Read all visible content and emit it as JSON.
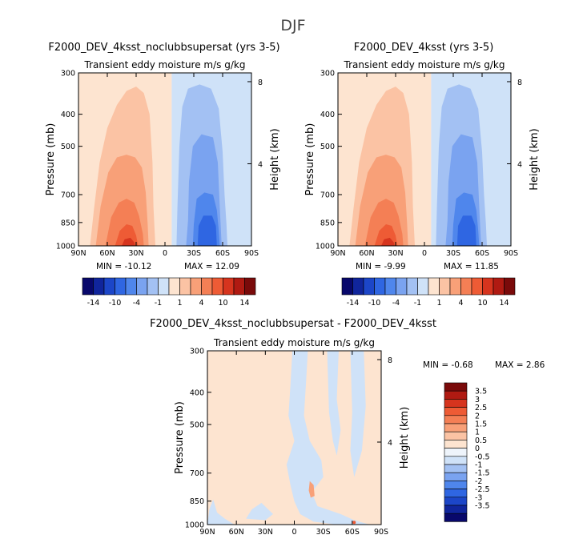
{
  "figure": {
    "title": "DJF"
  },
  "chart_data": [
    {
      "type": "heatmap",
      "id": "p1",
      "title": "F2000_DEV_4ksst_noclubbsupersat (yrs 3-5)",
      "subtitle": "Transient eddy moisture m/s g/kg",
      "xlabel": "",
      "ylabel": "Pressure (mb)",
      "y2label": "Height (km)",
      "xticks": [
        "90N",
        "60N",
        "30N",
        "0",
        "30S",
        "60S",
        "90S"
      ],
      "yticks": [
        300,
        400,
        500,
        700,
        850,
        1000
      ],
      "y2ticks": [
        8,
        4
      ],
      "min_label": "MIN = -10.12",
      "max_label": "MAX = 12.09",
      "stats": {
        "min": -10.12,
        "max": 12.09
      },
      "colorbar": {
        "orientation": "horizontal",
        "levels": [
          -14,
          -12,
          -10,
          -8,
          -4,
          -2,
          -1,
          -0.5,
          0.5,
          1,
          2,
          4,
          8,
          10,
          12,
          14
        ],
        "tick_labels": [
          "-14",
          "-10",
          "-4",
          "-1",
          "1",
          "4",
          "10",
          "14"
        ]
      },
      "features": [
        {
          "sign": "positive",
          "lat_center": 35,
          "peak": 12.09,
          "description": "northern hemisphere moisture flux maximum near 850-1000 mb"
        },
        {
          "sign": "negative",
          "lat_center": -45,
          "peak": -10.12,
          "description": "southern hemisphere moisture flux minimum near 850-1000 mb"
        }
      ]
    },
    {
      "type": "heatmap",
      "id": "p2",
      "title": "F2000_DEV_4ksst (yrs 3-5)",
      "subtitle": "Transient eddy moisture m/s g/kg",
      "xlabel": "",
      "ylabel": "Pressure (mb)",
      "y2label": "Height (km)",
      "xticks": [
        "90N",
        "60N",
        "30N",
        "0",
        "30S",
        "60S",
        "90S"
      ],
      "yticks": [
        300,
        400,
        500,
        700,
        850,
        1000
      ],
      "y2ticks": [
        8,
        4
      ],
      "min_label": "MIN = -9.99",
      "max_label": "MAX = 11.85",
      "stats": {
        "min": -9.99,
        "max": 11.85
      },
      "colorbar": {
        "orientation": "horizontal",
        "levels": [
          -14,
          -12,
          -10,
          -8,
          -4,
          -2,
          -1,
          -0.5,
          0.5,
          1,
          2,
          4,
          8,
          10,
          12,
          14
        ],
        "tick_labels": [
          "-14",
          "-10",
          "-4",
          "-1",
          "1",
          "4",
          "10",
          "14"
        ]
      },
      "features": [
        {
          "sign": "positive",
          "lat_center": 35,
          "peak": 11.85,
          "description": "northern hemisphere moisture flux maximum near 850-1000 mb"
        },
        {
          "sign": "negative",
          "lat_center": -45,
          "peak": -9.99,
          "description": "southern hemisphere moisture flux minimum near 850-1000 mb"
        }
      ]
    },
    {
      "type": "heatmap",
      "id": "p3",
      "title": "F2000_DEV_4ksst_noclubbsupersat - F2000_DEV_4ksst",
      "subtitle": "Transient eddy moisture m/s g/kg",
      "xlabel": "",
      "ylabel": "Pressure (mb)",
      "y2label": "Height (km)",
      "xticks": [
        "90N",
        "60N",
        "30N",
        "0",
        "30S",
        "60S",
        "90S"
      ],
      "yticks": [
        300,
        400,
        500,
        700,
        850,
        1000
      ],
      "y2ticks": [
        8,
        4
      ],
      "min_label": "MIN =   -0.68",
      "max_label": "MAX =   2.86",
      "stats": {
        "min": -0.68,
        "max": 2.86
      },
      "colorbar": {
        "orientation": "vertical",
        "tick_labels": [
          "3.5",
          "3",
          "2.5",
          "2",
          "1.5",
          "1",
          "0.5",
          "0",
          "-0.5",
          "-1",
          "-1.5",
          "-2",
          "-2.5",
          "-3",
          "-3.5"
        ]
      }
    }
  ],
  "colors": {
    "diverging": [
      "#08086b",
      "#10259c",
      "#1c46c8",
      "#2f66e2",
      "#4f86ec",
      "#7aa3f0",
      "#a3c1f3",
      "#cfe2f8",
      "#fde4d0",
      "#fbc3a4",
      "#f8a078",
      "#f47f55",
      "#ee5b35",
      "#d6341e",
      "#b01a12",
      "#7a0a0a"
    ],
    "diff": [
      "#7a0a0a",
      "#b01a12",
      "#d6341e",
      "#ee5b35",
      "#f47f55",
      "#f8a078",
      "#fbc3a4",
      "#fde4d0",
      "#eef4fb",
      "#cfe2f8",
      "#a3c1f3",
      "#7aa3f0",
      "#4f86ec",
      "#2f66e2",
      "#1c46c8",
      "#10259c",
      "#08086b"
    ]
  }
}
